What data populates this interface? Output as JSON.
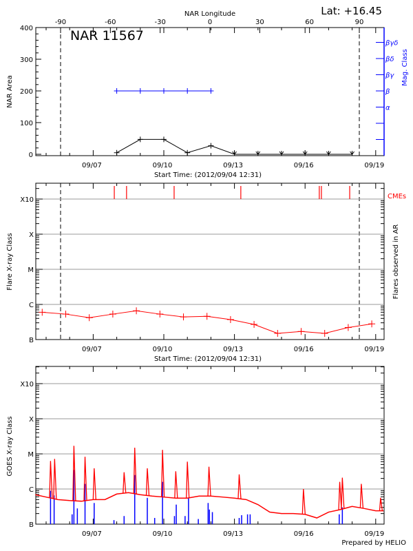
{
  "header": {
    "lat_label": "Lat: +16.45",
    "region_title": "NAR 11567",
    "footer": "Prepared by HELIO"
  },
  "colors": {
    "area": "#000000",
    "mag_class": "#0000ff",
    "flare": "#ff0000",
    "cme": "#ff0000",
    "goes": "#ff0000",
    "ar_flares": "#0000ff",
    "grid": "#999999"
  },
  "chart_data": [
    {
      "type": "line",
      "title": "NAR 11567",
      "xlabel": "Start Time: (2012/09/04 12:31)",
      "x_tick_labels": [
        "09/07",
        "09/10",
        "09/13",
        "09/16",
        "09/19"
      ],
      "top_axis_label": "NAR Longitude",
      "top_axis_ticks": [
        -90,
        -60,
        -30,
        0,
        30,
        60,
        90
      ],
      "ylabel": "NAR Area",
      "ylim": [
        0,
        400
      ],
      "yticks": [
        0,
        100,
        200,
        300,
        400
      ],
      "y2label": "Mag. Class",
      "y2ticks": [
        "",
        "",
        "α",
        "β",
        "βγ",
        "βδ",
        "βγδ"
      ],
      "limb_longitudes": [
        -90,
        90
      ],
      "area": {
        "dates": [
          "2012-09-08T00:00",
          "2012-09-09T00:00",
          "2012-09-10T00:00",
          "2012-09-11T00:00",
          "2012-09-12T00:00",
          "2012-09-13T00:00",
          "2012-09-14T00:00",
          "2012-09-15T00:00",
          "2012-09-16T00:00",
          "2012-09-17T00:00",
          "2012-09-18T00:00"
        ],
        "values": [
          5,
          47,
          47,
          5,
          27,
          0,
          0,
          0,
          0,
          0,
          0
        ]
      },
      "mag_class": {
        "dates": [
          "2012-09-08T00:00",
          "2012-09-09T00:00",
          "2012-09-10T00:00",
          "2012-09-11T00:00",
          "2012-09-12T00:00"
        ],
        "values": [
          "β",
          "β",
          "β",
          "β",
          "β"
        ]
      }
    },
    {
      "type": "line",
      "xlabel": "Start Time: (2012/09/04 12:31)",
      "x_tick_labels": [
        "09/07",
        "09/10",
        "09/13",
        "09/16",
        "09/19"
      ],
      "ylabel": "Flare X-ray Class",
      "y2label": "Flares observed in AR",
      "yticks": [
        "B",
        "C",
        "M",
        "X",
        "X10"
      ],
      "grid": true,
      "cme_label": "CMEs",
      "cme_times": [
        "2012-09-07T21:30",
        "2012-09-08T10:00",
        "2012-09-10T10:30",
        "2012-09-13T06:30",
        "2012-09-16T14:30",
        "2012-09-16T16:40",
        "2012-09-17T21:30"
      ],
      "limb_longitudes": [
        -90,
        90
      ],
      "flares": {
        "dates": [
          "2012-09-04T20:00",
          "2012-09-05T20:00",
          "2012-09-06T20:00",
          "2012-09-07T20:00",
          "2012-09-08T20:00",
          "2012-09-09T20:00",
          "2012-09-10T20:00",
          "2012-09-11T20:00",
          "2012-09-12T20:00",
          "2012-09-13T20:00",
          "2012-09-14T20:00",
          "2012-09-15T20:00",
          "2012-09-16T20:00",
          "2012-09-17T20:00",
          "2012-09-18T20:00"
        ],
        "values": [
          "B6.0",
          "B5.3",
          "B4.2",
          "B5.3",
          "B6.6",
          "B5.3",
          "B4.4",
          "B4.6",
          "B3.7",
          "B2.7",
          "B1.5",
          "B1.7",
          "B1.5",
          "B2.2",
          "B2.8"
        ]
      }
    },
    {
      "type": "line",
      "x_tick_labels": [
        "09/07",
        "09/10",
        "09/13",
        "09/16",
        "09/19"
      ],
      "ylabel": "GOES X-ray Class",
      "yticks": [
        "B",
        "C",
        "M",
        "X",
        "X10"
      ],
      "grid": true,
      "goes_background": [
        [
          "2012-09-04T13:00",
          "B6.9"
        ],
        [
          "2012-09-05T00:00",
          "B5.9"
        ],
        [
          "2012-09-05T12:00",
          "B5.0"
        ],
        [
          "2012-09-06T00:00",
          "B4.7"
        ],
        [
          "2012-09-06T12:00",
          "B4.5"
        ],
        [
          "2012-09-07T00:00",
          "B5.0"
        ],
        [
          "2012-09-07T12:00",
          "B5.0"
        ],
        [
          "2012-09-08T00:00",
          "B7.2"
        ],
        [
          "2012-09-08T12:00",
          "B7.9"
        ],
        [
          "2012-09-09T00:00",
          "B6.9"
        ],
        [
          "2012-09-09T12:00",
          "B6.3"
        ],
        [
          "2012-09-10T00:00",
          "B5.9"
        ],
        [
          "2012-09-10T12:00",
          "B5.5"
        ],
        [
          "2012-09-11T00:00",
          "B5.5"
        ],
        [
          "2012-09-11T12:00",
          "B6.3"
        ],
        [
          "2012-09-12T00:00",
          "B6.3"
        ],
        [
          "2012-09-12T12:00",
          "B5.9"
        ],
        [
          "2012-09-13T00:00",
          "B5.5"
        ],
        [
          "2012-09-13T12:00",
          "B5.0"
        ],
        [
          "2012-09-14T00:00",
          "B3.6"
        ],
        [
          "2012-09-14T12:00",
          "B2.2"
        ],
        [
          "2012-09-15T00:00",
          "B2.0"
        ],
        [
          "2012-09-15T12:00",
          "B2.0"
        ],
        [
          "2012-09-16T00:00",
          "B1.9"
        ],
        [
          "2012-09-16T12:00",
          "B1.5"
        ],
        [
          "2012-09-17T00:00",
          "B2.2"
        ],
        [
          "2012-09-17T12:00",
          "B2.6"
        ],
        [
          "2012-09-18T00:00",
          "B3.2"
        ],
        [
          "2012-09-18T12:00",
          "B2.8"
        ],
        [
          "2012-09-19T00:00",
          "B2.4"
        ],
        [
          "2012-09-19T08:00",
          "B2.4"
        ]
      ],
      "goes_peaks": [
        [
          "2012-09-05T04:30",
          "C6.3"
        ],
        [
          "2012-09-05T08:40",
          "C7.2"
        ],
        [
          "2012-09-06T04:20",
          "M1.7"
        ],
        [
          "2012-09-06T15:40",
          "C8.3"
        ],
        [
          "2012-09-07T01:00",
          "C3.9"
        ],
        [
          "2012-09-08T07:30",
          "C3.0"
        ],
        [
          "2012-09-08T18:20",
          "M1.5"
        ],
        [
          "2012-09-09T07:10",
          "C3.9"
        ],
        [
          "2012-09-09T22:40",
          "M1.3"
        ],
        [
          "2012-09-10T12:10",
          "C3.2"
        ],
        [
          "2012-09-11T00:00",
          "C6.0"
        ],
        [
          "2012-09-11T22:00",
          "C4.3"
        ],
        [
          "2012-09-13T04:50",
          "C2.6"
        ],
        [
          "2012-09-15T22:20",
          "C1.0"
        ],
        [
          "2012-09-17T11:20",
          "C1.6"
        ],
        [
          "2012-09-17T14:00",
          "C2.1"
        ],
        [
          "2012-09-18T09:20",
          "C1.4"
        ],
        [
          "2012-09-19T05:00",
          "B5.6"
        ]
      ],
      "ar_flares": [
        [
          "2012-09-05T04:30",
          "B8.9"
        ],
        [
          "2012-09-05T08:10",
          "B6.6"
        ],
        [
          "2012-09-06T02:30",
          "B1.9"
        ],
        [
          "2012-09-06T04:20",
          "C3.5"
        ],
        [
          "2012-09-06T07:50",
          "B2.8"
        ],
        [
          "2012-09-06T15:40",
          "C1.4"
        ],
        [
          "2012-09-07T01:00",
          "B4.0"
        ],
        [
          "2012-09-07T21:10",
          "B1.3"
        ],
        [
          "2012-09-08T07:30",
          "B1.7"
        ],
        [
          "2012-09-08T18:20",
          "C2.5"
        ],
        [
          "2012-09-09T07:10",
          "B5.6"
        ],
        [
          "2012-09-09T14:40",
          "B1.5"
        ],
        [
          "2012-09-09T22:40",
          "C1.6"
        ],
        [
          "2012-09-10T10:50",
          "B1.7"
        ],
        [
          "2012-09-10T12:40",
          "B3.6"
        ],
        [
          "2012-09-10T21:40",
          "B1.7"
        ],
        [
          "2012-09-11T01:10",
          "B5.6"
        ],
        [
          "2012-09-11T11:10",
          "B1.4"
        ],
        [
          "2012-09-11T21:10",
          "B4.0"
        ],
        [
          "2012-09-11T22:30",
          "B2.6"
        ],
        [
          "2012-09-12T01:30",
          "B2.2"
        ],
        [
          "2012-09-13T04:50",
          "B1.5"
        ],
        [
          "2012-09-13T07:20",
          "B1.8"
        ],
        [
          "2012-09-13T13:20",
          "B1.9"
        ],
        [
          "2012-09-13T16:00",
          "B1.9"
        ],
        [
          "2012-09-17T10:50",
          "B1.9"
        ],
        [
          "2012-09-17T14:00",
          "B3.0"
        ]
      ]
    }
  ]
}
